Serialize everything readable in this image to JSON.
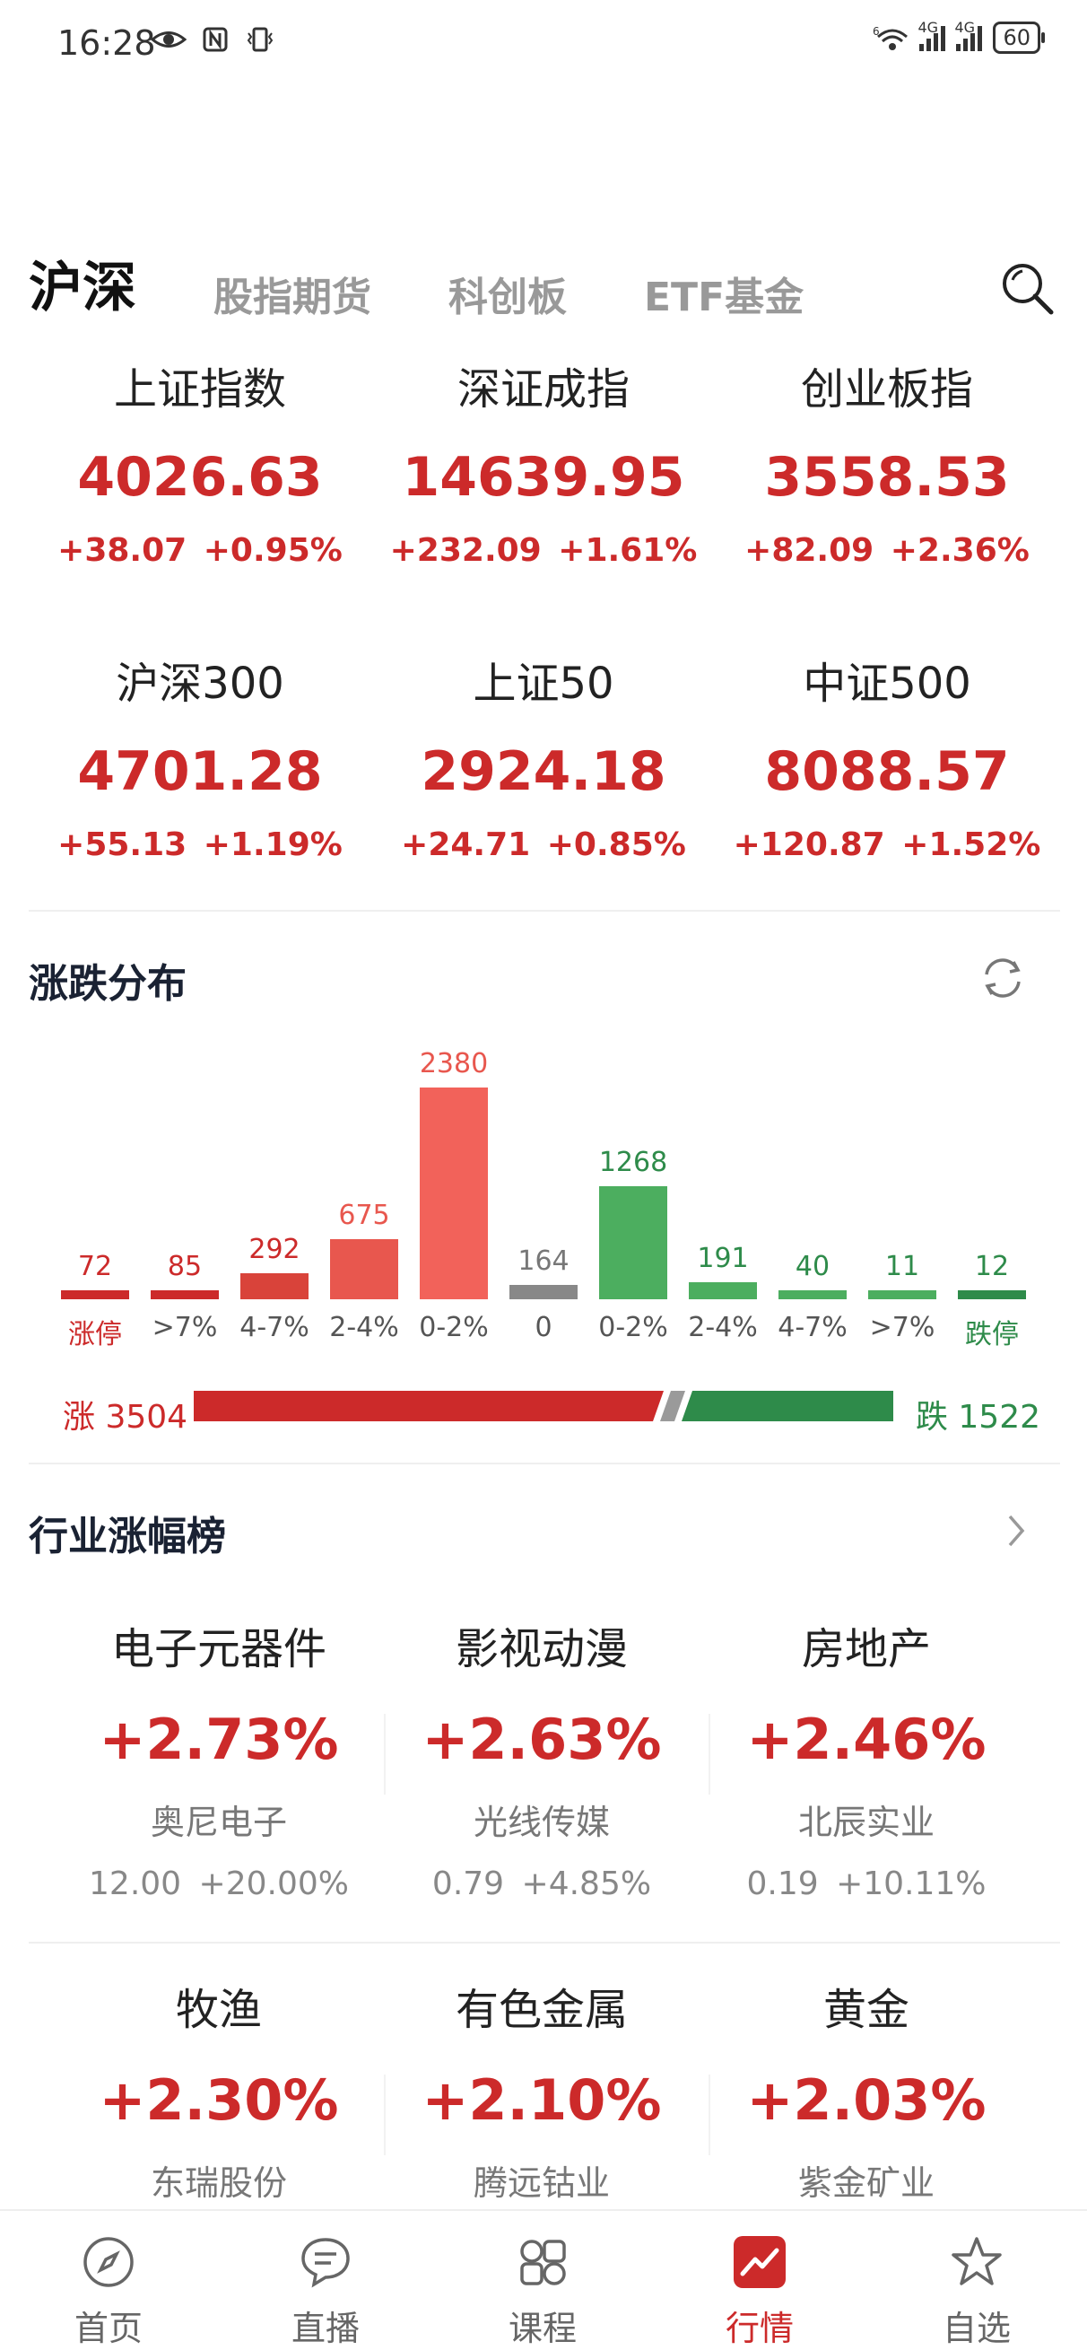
{
  "status_bar": {
    "time": "16:28",
    "battery": "60",
    "sim1": "4G",
    "sim2": "4G",
    "wifi": "6"
  },
  "tabs": [
    {
      "label": "沪深",
      "active": true
    },
    {
      "label": "股指期货",
      "active": false
    },
    {
      "label": "科创板",
      "active": false
    },
    {
      "label": "ETF基金",
      "active": false
    }
  ],
  "indices": [
    {
      "name": "上证指数",
      "value": "4026.63",
      "change": "+38.07",
      "pct": "+0.95%"
    },
    {
      "name": "深证成指",
      "value": "14639.95",
      "change": "+232.09",
      "pct": "+1.61%"
    },
    {
      "name": "创业板指",
      "value": "3558.53",
      "change": "+82.09",
      "pct": "+2.36%"
    },
    {
      "name": "沪深300",
      "value": "4701.28",
      "change": "+55.13",
      "pct": "+1.19%"
    },
    {
      "name": "上证50",
      "value": "2924.18",
      "change": "+24.71",
      "pct": "+0.85%"
    },
    {
      "name": "中证500",
      "value": "8088.57",
      "change": "+120.87",
      "pct": "+1.52%"
    }
  ],
  "distribution": {
    "title": "涨跌分布",
    "up_label": "涨 3504",
    "down_label": "跌 1522",
    "up_count": 3504,
    "down_count": 1522
  },
  "chart_data": {
    "type": "bar",
    "categories": [
      "涨停",
      ">7%",
      "4-7%",
      "2-4%",
      "0-2%",
      "0",
      "0-2%",
      "2-4%",
      "4-7%",
      ">7%",
      "跌停"
    ],
    "values": [
      72,
      85,
      292,
      675,
      2380,
      164,
      1268,
      191,
      40,
      11,
      12
    ],
    "colors": [
      "#cc2a2a",
      "#cc2a2a",
      "#d9433a",
      "#e8574e",
      "#f2625a",
      "#888888",
      "#4cae5f",
      "#4cae5f",
      "#4cae5f",
      "#4cae5f",
      "#2e8b4a"
    ],
    "label_colors": [
      "#cc2a2a",
      "#cc2a2a",
      "#cc2a2a",
      "#e8574e",
      "#e8574e",
      "#777777",
      "#2e8b4a",
      "#2e8b4a",
      "#2e8b4a",
      "#2e8b4a",
      "#2e8b4a"
    ],
    "title": "",
    "xlabel": "",
    "ylabel": ""
  },
  "industry": {
    "title": "行业涨幅榜",
    "items": [
      {
        "name": "电子元器件",
        "pct": "+2.73%",
        "stock": "奥尼电子",
        "price": "12.00",
        "stock_pct": "+20.00%"
      },
      {
        "name": "影视动漫",
        "pct": "+2.63%",
        "stock": "光线传媒",
        "price": "0.79",
        "stock_pct": "+4.85%"
      },
      {
        "name": "房地产",
        "pct": "+2.46%",
        "stock": "北辰实业",
        "price": "0.19",
        "stock_pct": "+10.11%"
      },
      {
        "name": "牧渔",
        "pct": "+2.30%",
        "stock": "东瑞股份"
      },
      {
        "name": "有色金属",
        "pct": "+2.10%",
        "stock": "腾远钴业"
      },
      {
        "name": "黄金",
        "pct": "+2.03%",
        "stock": "紫金矿业"
      }
    ]
  },
  "nav": [
    {
      "label": "首页",
      "icon": "compass-icon",
      "active": false
    },
    {
      "label": "直播",
      "icon": "chat-bubble-icon",
      "active": false
    },
    {
      "label": "课程",
      "icon": "grid-icon",
      "active": false
    },
    {
      "label": "行情",
      "icon": "trend-chart-icon",
      "active": true
    },
    {
      "label": "自选",
      "icon": "star-icon",
      "active": false
    }
  ]
}
